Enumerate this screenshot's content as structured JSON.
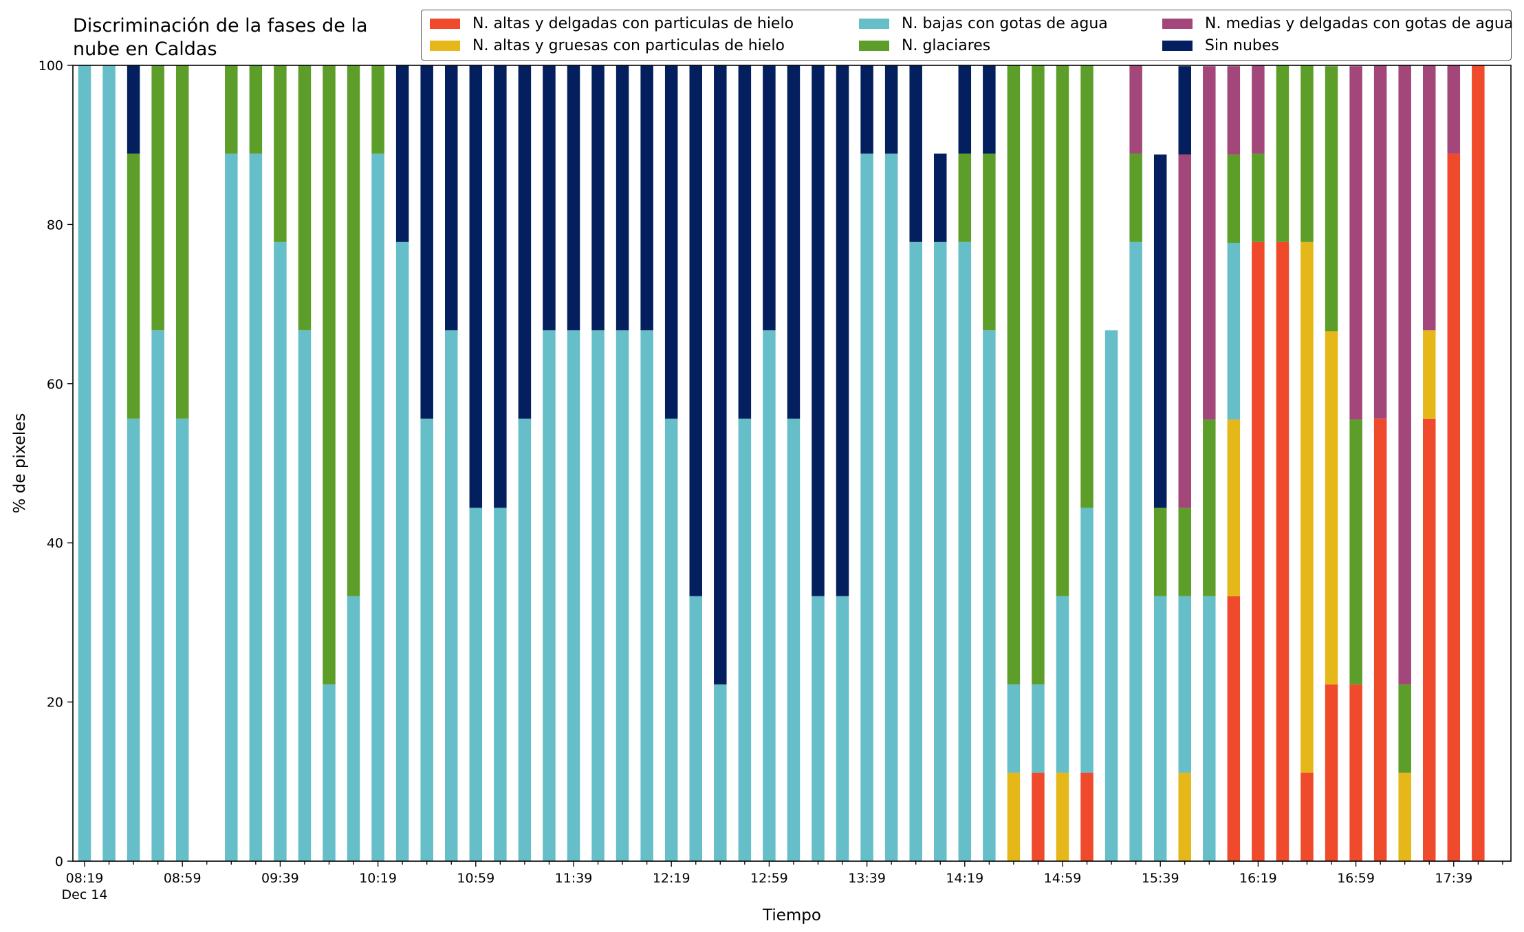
{
  "chart_data": {
    "type": "bar",
    "stacked": true,
    "title": "Discriminación de la fases de la\nnube en Caldas",
    "xlabel": "Tiempo",
    "ylabel": "% de pixeles",
    "ylim": [
      0,
      100
    ],
    "yticks": [
      0,
      20,
      40,
      60,
      80,
      100
    ],
    "x_tick_labels": [
      "08:19\nDec 14",
      "08:59",
      "09:39",
      "10:19",
      "10:59",
      "11:39",
      "12:19",
      "12:59",
      "13:39",
      "14:19",
      "14:59",
      "15:39",
      "16:19",
      "16:59",
      "17:39"
    ],
    "x_interval_minutes": 10,
    "x_start": "08:19",
    "legend_position": "top-right",
    "grid": false,
    "categories": [
      "08:19",
      "08:29",
      "08:39",
      "08:49",
      "08:59",
      "09:09",
      "09:19",
      "09:29",
      "09:39",
      "09:49",
      "09:59",
      "10:09",
      "10:19",
      "10:29",
      "10:39",
      "10:49",
      "10:59",
      "11:09",
      "11:19",
      "11:29",
      "11:39",
      "11:49",
      "11:59",
      "12:09",
      "12:19",
      "12:29",
      "12:39",
      "12:49",
      "12:59",
      "13:09",
      "13:19",
      "13:29",
      "13:39",
      "13:49",
      "13:59",
      "14:09",
      "14:19",
      "14:29",
      "14:39",
      "14:49",
      "14:59",
      "15:09",
      "15:19",
      "15:29",
      "15:39",
      "15:49",
      "15:59",
      "16:09",
      "16:19",
      "16:29",
      "16:39",
      "16:49",
      "16:59",
      "17:09",
      "17:19",
      "17:29",
      "17:39",
      "17:49",
      "17:59"
    ],
    "series": [
      {
        "name": "N. altas y delgadas con particulas de hielo",
        "color": "#ee4a2b",
        "values": [
          0,
          0,
          0,
          0,
          0,
          0,
          0,
          0,
          0,
          0,
          0,
          0,
          0,
          0,
          0,
          0,
          0,
          0,
          0,
          0,
          0,
          0,
          0,
          0,
          0,
          0,
          0,
          0,
          0,
          0,
          0,
          0,
          0,
          0,
          0,
          0,
          0,
          0,
          0,
          11.1,
          0,
          11.1,
          0,
          0,
          0,
          0,
          0,
          33.3,
          77.8,
          77.8,
          11.1,
          22.2,
          22.2,
          55.6,
          0,
          55.6,
          88.9,
          100,
          0
        ]
      },
      {
        "name": "N. altas y gruesas con particulas de hielo",
        "color": "#e5b718",
        "values": [
          0,
          0,
          0,
          0,
          0,
          0,
          0,
          0,
          0,
          0,
          0,
          0,
          0,
          0,
          0,
          0,
          0,
          0,
          0,
          0,
          0,
          0,
          0,
          0,
          0,
          0,
          0,
          0,
          0,
          0,
          0,
          0,
          0,
          0,
          0,
          0,
          0,
          0,
          11.1,
          0,
          11.1,
          0,
          0,
          0,
          0,
          11.1,
          0,
          22.2,
          0,
          0,
          66.7,
          44.4,
          0,
          0,
          11.1,
          11.1,
          0,
          0,
          0
        ]
      },
      {
        "name": "N. bajas con gotas de agua",
        "color": "#66bec8",
        "values": [
          100,
          100,
          55.6,
          66.7,
          55.6,
          0,
          88.9,
          88.9,
          77.8,
          66.7,
          22.2,
          33.3,
          88.9,
          77.8,
          55.6,
          66.7,
          44.4,
          44.4,
          55.6,
          66.7,
          66.7,
          66.7,
          66.7,
          66.7,
          55.6,
          33.3,
          22.2,
          55.6,
          66.7,
          55.6,
          33.3,
          33.3,
          88.9,
          88.9,
          77.8,
          77.8,
          77.8,
          66.7,
          11.1,
          11.1,
          22.2,
          33.3,
          66.7,
          77.8,
          33.3,
          22.2,
          33.3,
          22.2,
          0,
          0,
          0,
          0,
          0,
          0,
          0,
          0,
          0,
          0,
          0
        ]
      },
      {
        "name": "N. glaciares",
        "color": "#5d9e2a",
        "values": [
          0,
          0,
          33.3,
          33.3,
          44.4,
          0,
          11.1,
          11.1,
          22.2,
          33.3,
          77.8,
          66.7,
          11.1,
          0,
          0,
          0,
          0,
          0,
          0,
          0,
          0,
          0,
          0,
          0,
          0,
          0,
          0,
          0,
          0,
          0,
          0,
          0,
          0,
          0,
          0,
          0,
          11.1,
          22.2,
          77.8,
          77.8,
          66.7,
          55.6,
          0,
          11.1,
          11.1,
          11.1,
          22.2,
          11.1,
          11.1,
          22.2,
          22.2,
          33.3,
          33.3,
          0,
          11.1,
          0,
          0,
          0,
          0
        ]
      },
      {
        "name": "N. medias y delgadas con gotas de agua",
        "color": "#a3477a",
        "values": [
          0,
          0,
          0,
          0,
          0,
          0,
          0,
          0,
          0,
          0,
          0,
          0,
          0,
          0,
          0,
          0,
          0,
          0,
          0,
          0,
          0,
          0,
          0,
          0,
          0,
          0,
          0,
          0,
          0,
          0,
          0,
          0,
          0,
          0,
          0,
          0,
          0,
          0,
          0,
          0,
          0,
          0,
          0,
          11.1,
          0,
          44.4,
          44.4,
          11.1,
          11.1,
          0,
          0,
          0,
          44.4,
          44.4,
          77.8,
          33.3,
          11.1,
          0,
          0
        ]
      },
      {
        "name": "Sin nubes",
        "color": "#041f5e",
        "values": [
          0,
          0,
          11.1,
          0,
          0,
          0,
          0,
          0,
          0,
          0,
          0,
          0,
          0,
          22.2,
          44.4,
          33.3,
          55.6,
          55.6,
          44.4,
          33.3,
          33.3,
          33.3,
          33.3,
          33.3,
          44.4,
          66.7,
          77.8,
          44.4,
          33.3,
          44.4,
          66.7,
          66.7,
          11.1,
          11.1,
          22.2,
          11.1,
          11.1,
          11.1,
          0,
          0,
          0,
          0,
          0,
          0,
          44.4,
          11.1,
          0,
          0,
          0,
          0,
          0,
          0,
          0,
          0,
          0,
          0,
          0,
          0,
          0
        ]
      }
    ]
  }
}
